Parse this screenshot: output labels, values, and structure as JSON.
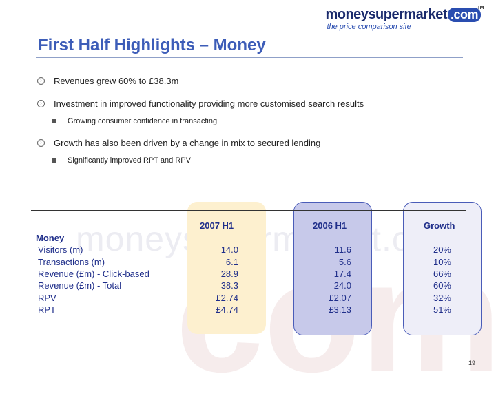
{
  "watermark": {
    "text": "moneysupermarket.com",
    "big": "com"
  },
  "logo": {
    "money": "money",
    "supermarket": "supermarket",
    "com": ".com",
    "tm": "TM",
    "tagline": "the price comparison site"
  },
  "slide": {
    "title": "First Half Highlights – Money",
    "page_number": "19"
  },
  "bullets": [
    {
      "text": "Revenues grew 60% to £38.3m",
      "icon": "circle-arrow-icon"
    },
    {
      "text": "Investment in improved functionality providing more customised search results",
      "icon": "circle-arrow-icon",
      "sub": "Growing consumer confidence in transacting"
    },
    {
      "text": "Growth has also been driven by a change in mix to secured lending",
      "icon": "circle-arrow-icon",
      "sub": "Significantly improved RPT and RPV"
    }
  ],
  "table": {
    "section": "Money",
    "headers": [
      "2007 H1",
      "2006 H1",
      "Growth"
    ],
    "rows": [
      {
        "label": "Visitors (m)",
        "h2007": "14.0",
        "h2006": "11.6",
        "growth": "20%"
      },
      {
        "label": "Transactions (m)",
        "h2007": "6.1",
        "h2006": "5.6",
        "growth": "10%"
      },
      {
        "label": "Revenue (£m) - Click-based",
        "h2007": "28.9",
        "h2006": "17.4",
        "growth": "66%"
      },
      {
        "label": "Revenue (£m) - Total",
        "h2007": "38.3",
        "h2006": "24.0",
        "growth": "60%"
      },
      {
        "label": "RPV",
        "h2007": "£2.74",
        "h2006": "£2.07",
        "growth": "32%"
      },
      {
        "label": "RPT",
        "h2007": "£4.74",
        "h2006": "£3.13",
        "growth": "51%"
      }
    ]
  },
  "colors": {
    "title": "#3d5db8",
    "table_text": "#1f2e8a",
    "col_2007": "#fdf0cf",
    "col_2006": "#c7c9ea",
    "col_growth": "#eeeef8"
  }
}
